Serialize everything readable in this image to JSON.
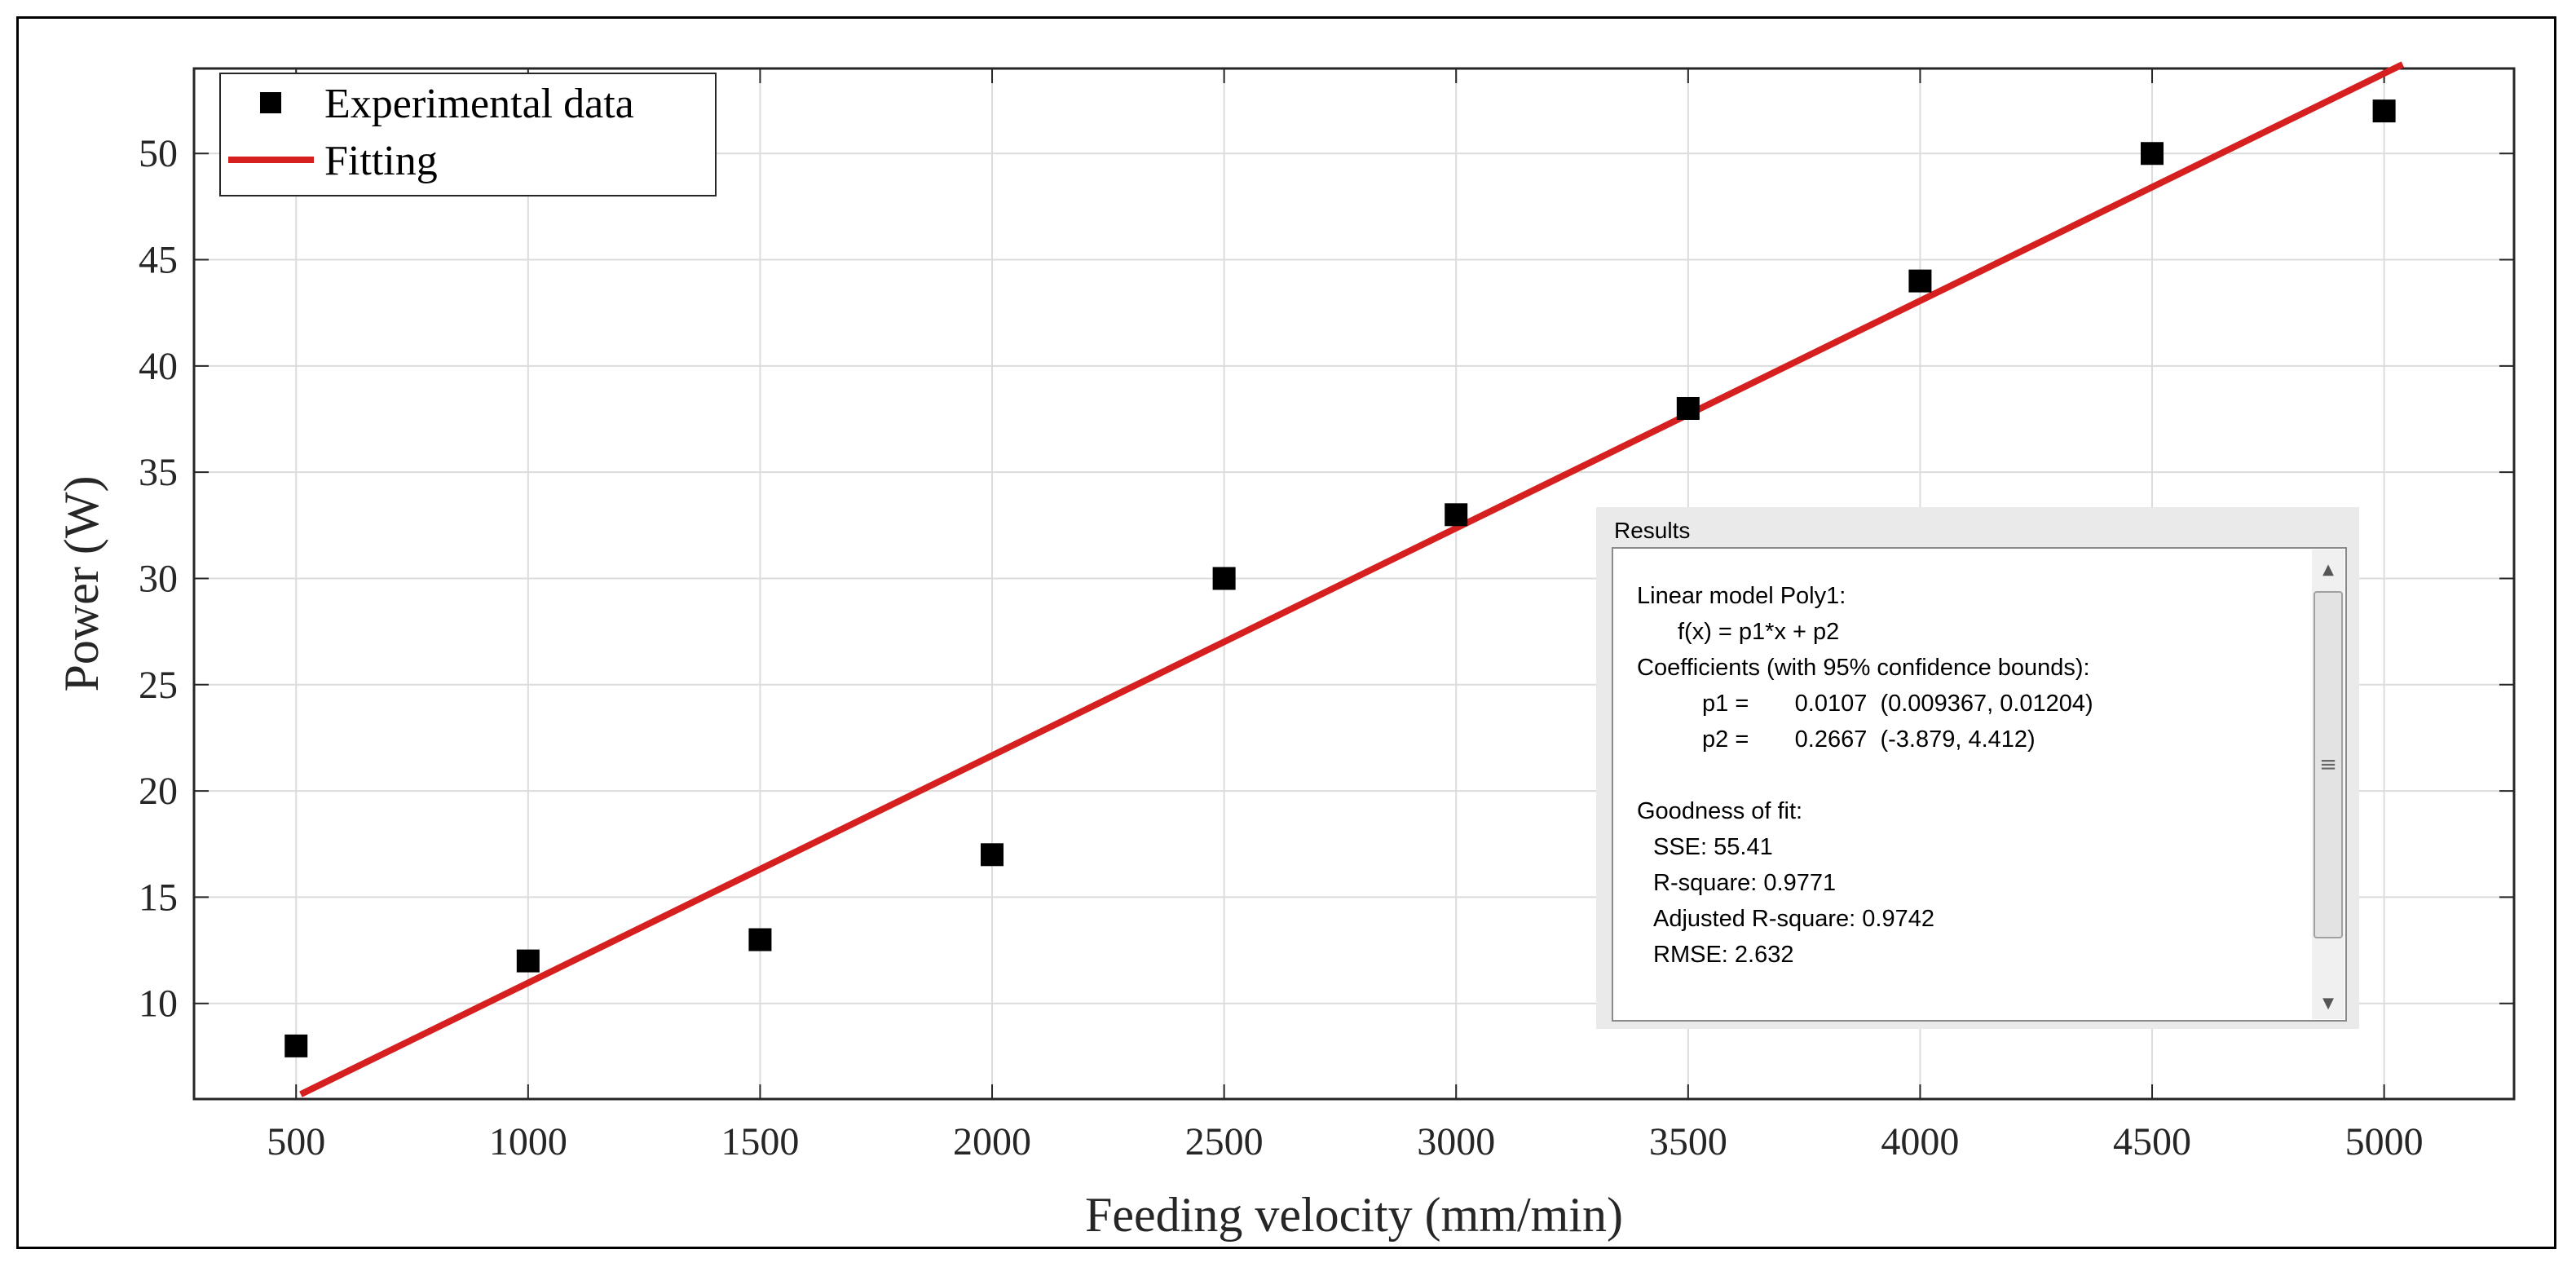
{
  "chart_data": {
    "type": "scatter",
    "xlabel": "Feeding velocity (mm/min)",
    "ylabel": "Power (W)",
    "xlim": [
      280,
      5280
    ],
    "ylim": [
      5.5,
      54
    ],
    "xticks": [
      500,
      1000,
      1500,
      2000,
      2500,
      3000,
      3500,
      4000,
      4500,
      5000
    ],
    "yticks": [
      10,
      15,
      20,
      25,
      30,
      35,
      40,
      45,
      50
    ],
    "grid": true,
    "series": [
      {
        "name": "Experimental data",
        "kind": "markers",
        "color": "#000000",
        "x": [
          500,
          1000,
          1500,
          2000,
          2500,
          3000,
          3500,
          4000,
          4500,
          5000
        ],
        "y": [
          8,
          12,
          13,
          17,
          30,
          33,
          38,
          44,
          50,
          52
        ]
      },
      {
        "name": "Fitting",
        "kind": "line",
        "color": "#d62020",
        "slope": 0.0107,
        "intercept": 0.2667,
        "x_range": [
          510,
          5040
        ]
      }
    ],
    "legend": {
      "position": "top-left",
      "labels": [
        "Experimental data",
        "Fitting"
      ]
    },
    "results_panel": {
      "title": "Results",
      "lines": [
        "Linear model Poly1:",
        "f(x) = p1*x + p2",
        "Coefficients (with 95% confidence bounds):",
        "p1 =       0.0107  (0.009367, 0.01204)",
        "p2 =       0.2667  (-3.879, 4.412)",
        "",
        "Goodness of fit:",
        "SSE: 55.41",
        "R-square: 0.9771",
        "Adjusted R-square: 0.9742",
        "RMSE: 2.632"
      ],
      "scroll_up": "▲",
      "scroll_down": "▼",
      "scroll_grip": "≡"
    }
  }
}
